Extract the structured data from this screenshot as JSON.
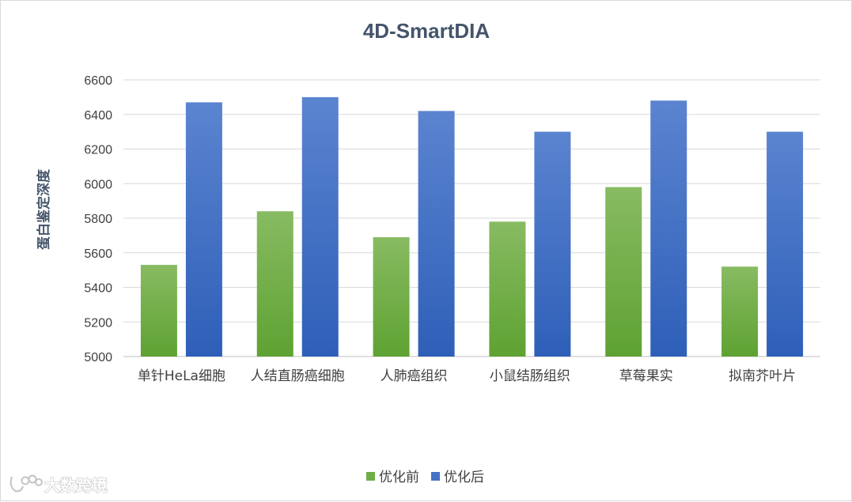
{
  "chart_data": {
    "type": "bar",
    "title": "4D-SmartDIA",
    "xlabel": "",
    "ylabel": "蛋白鉴定深度",
    "ylim": [
      5000,
      6600
    ],
    "yticks": [
      5000,
      5200,
      5400,
      5600,
      5800,
      6000,
      6200,
      6400,
      6600
    ],
    "grid": true,
    "legend_position": "bottom",
    "categories": [
      "单针HeLa细胞",
      "人结直肠癌细胞",
      "人肺癌组织",
      "小鼠结肠组织",
      "草莓果实",
      "拟南芥叶片"
    ],
    "series": [
      {
        "name": "优化前",
        "color": "#70ad47",
        "values": [
          5530,
          5840,
          5690,
          5780,
          5980,
          5520
        ]
      },
      {
        "name": "优化后",
        "color": "#4472c4",
        "values": [
          6470,
          6500,
          6420,
          6300,
          6480,
          6300
        ]
      }
    ]
  },
  "watermark": {
    "text": "大数跨境"
  }
}
